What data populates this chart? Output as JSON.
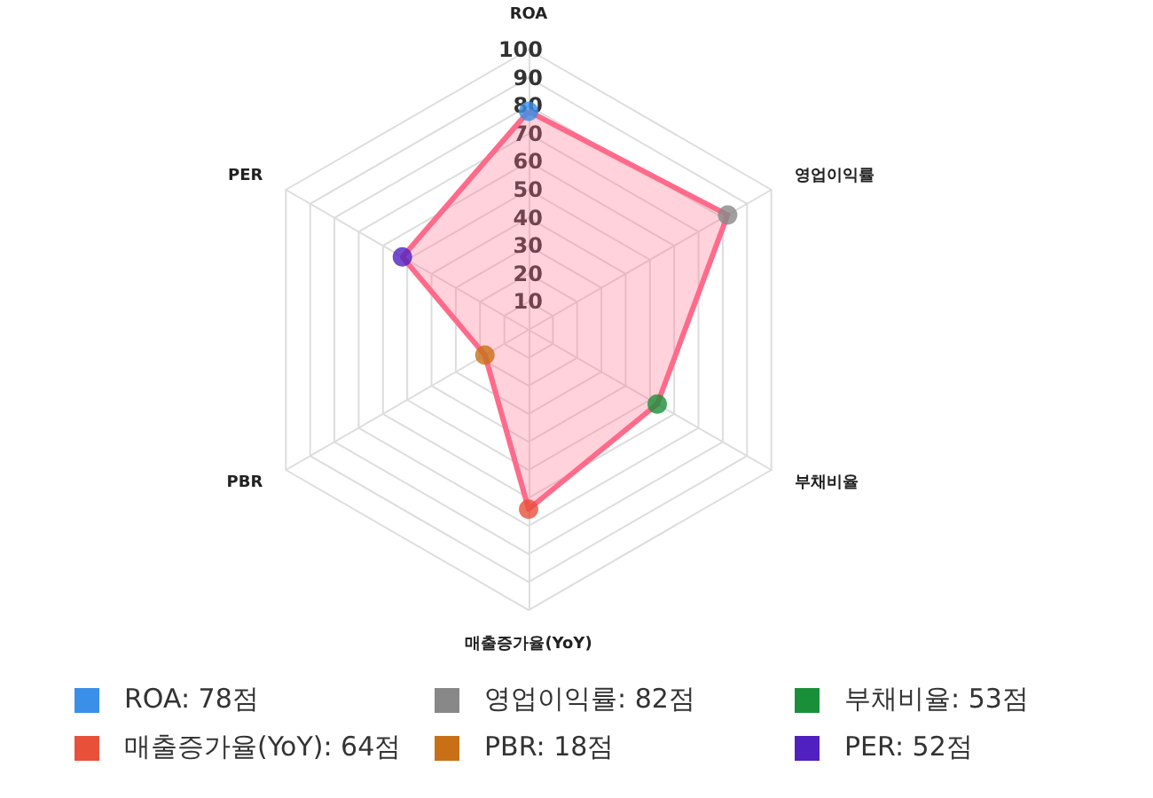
{
  "chart_data": {
    "type": "radar",
    "categories": [
      "ROA",
      "영업이익률",
      "부채비율",
      "매출증가율(YoY)",
      "PBR",
      "PER"
    ],
    "series": [
      {
        "color": "#ff6b8a",
        "values": [
          78,
          82,
          53,
          64,
          18,
          52
        ]
      }
    ],
    "colors": [
      "#3a8fe8",
      "#888888",
      "#1a8f3a",
      "#e8503a",
      "#c87018",
      "#5020c0"
    ],
    "value_labels": [
      "ROA: 78점",
      "영업이익률: 82점",
      "부채비율: 53점",
      "매출증가율(YoY): 64점",
      "PBR: 18점",
      "PER: 52점"
    ],
    "ylim": [
      0,
      100
    ],
    "yticks": [
      10,
      20,
      30,
      40,
      50,
      60,
      70,
      80,
      90,
      100
    ],
    "grid": true,
    "marker": "circle"
  }
}
